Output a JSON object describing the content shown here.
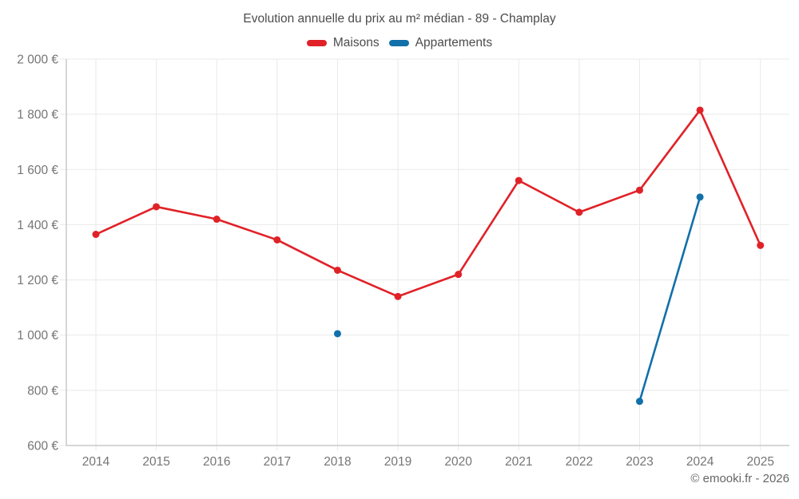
{
  "attribution": "© emooki.fr - 2026",
  "colors": {
    "maisons": "#e02228",
    "appartements": "#1170a9",
    "grid": "#e9e9e9",
    "axis": "#c9c9c9",
    "title_text": "#4c4c4c",
    "axis_text": "#757575",
    "attribution_text": "#666666"
  },
  "chart_data": {
    "type": "line",
    "title": "Evolution annuelle du prix au m² médian - 89 - Champlay",
    "x": [
      "2014",
      "2015",
      "2016",
      "2017",
      "2018",
      "2019",
      "2020",
      "2021",
      "2022",
      "2023",
      "2024",
      "2025"
    ],
    "series": [
      {
        "name": "Maisons",
        "color": "#e02228",
        "values": [
          1365,
          1465,
          1420,
          1345,
          1235,
          1140,
          1220,
          1560,
          1445,
          1525,
          1815,
          1325
        ]
      },
      {
        "name": "Appartements",
        "color": "#1170a9",
        "values": [
          null,
          null,
          null,
          null,
          1005,
          null,
          null,
          null,
          null,
          760,
          1500,
          null
        ]
      }
    ],
    "ylim": [
      600,
      2000
    ],
    "yticks": {
      "values": [
        2000,
        1800,
        1600,
        1400,
        1200,
        1000,
        800,
        600
      ],
      "labels": [
        "2 000 €",
        "1 800 €",
        "1 600 €",
        "1 400 €",
        "1 200 €",
        "1 000 €",
        "800 €",
        "600 €"
      ]
    },
    "grid": true,
    "legend_position": "top",
    "currency": "€"
  }
}
